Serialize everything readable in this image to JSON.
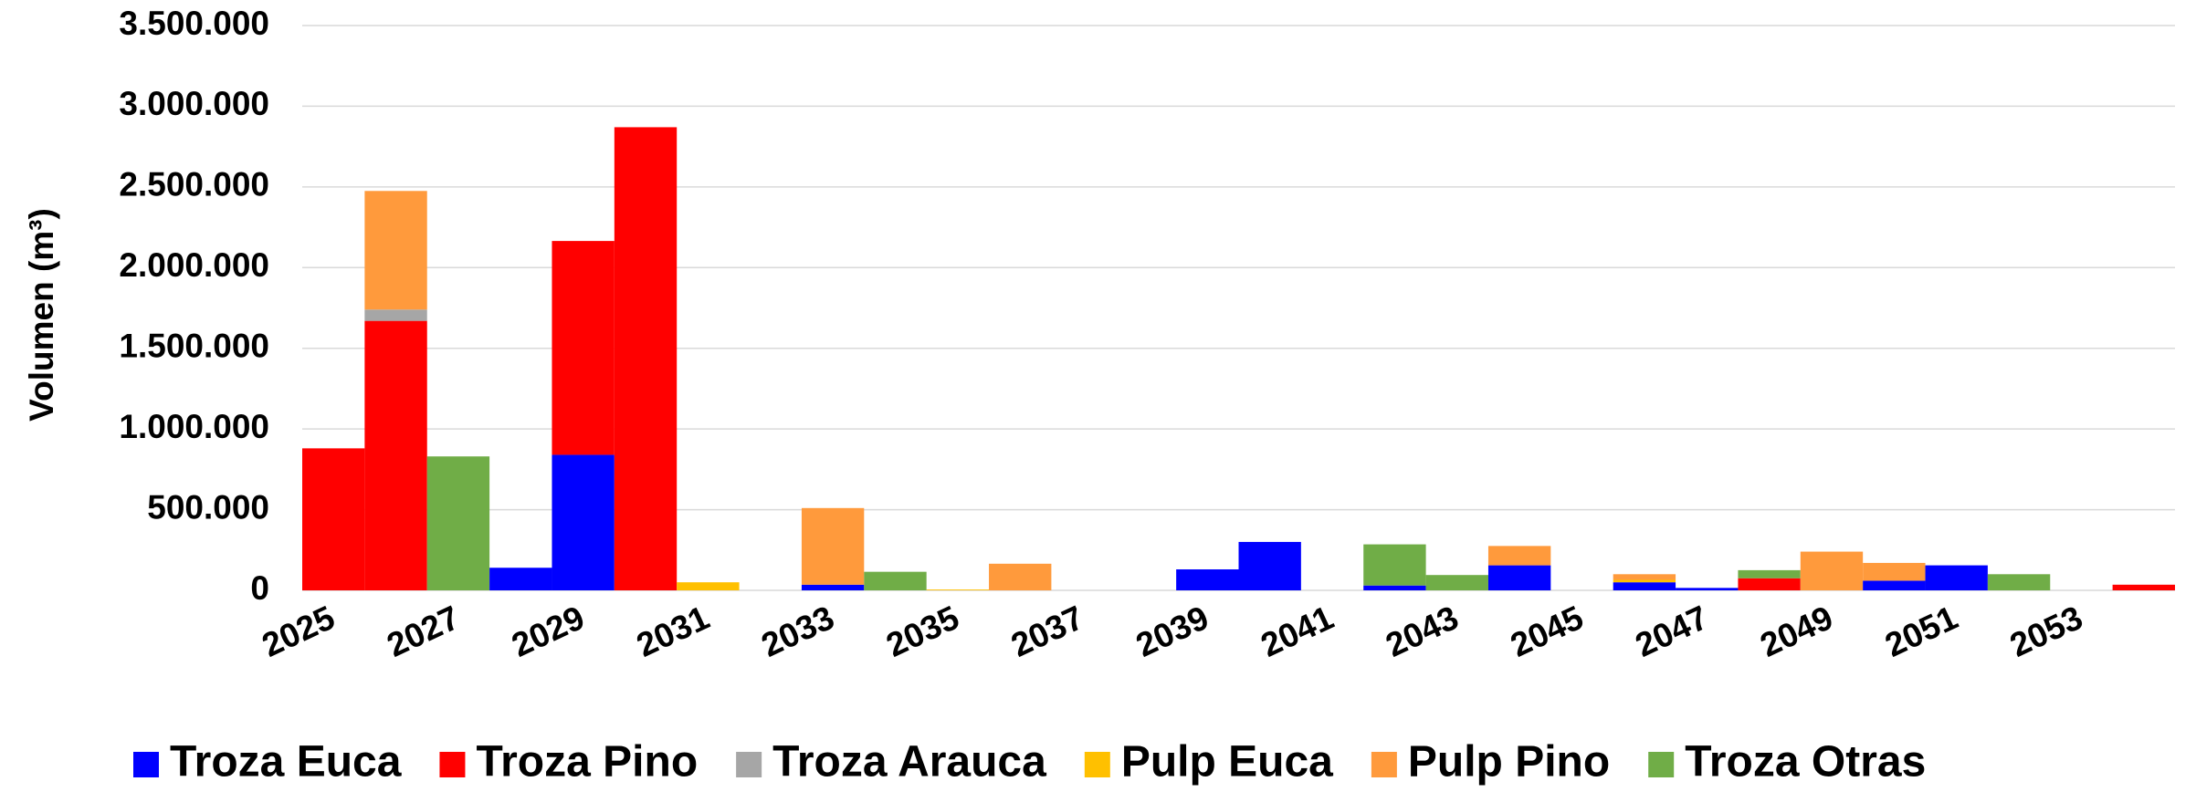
{
  "chart_data": {
    "type": "stacked_bar",
    "y_label": "Volumen (m³)",
    "categories": [
      "2025",
      null,
      "2027",
      null,
      "2029",
      null,
      "2031",
      null,
      "2033",
      null,
      "2035",
      null,
      "2037",
      null,
      "2039",
      null,
      "2041",
      null,
      "2043",
      null,
      "2045",
      null,
      "2047",
      null,
      "2049",
      null,
      "2051",
      null,
      "2053",
      null
    ],
    "series": [
      {
        "name": "Troza Euca",
        "color": "#0000ff",
        "values": [
          0,
          0,
          0,
          140000,
          840000,
          0,
          0,
          0,
          35000,
          0,
          0,
          0,
          0,
          0,
          130000,
          300000,
          0,
          30000,
          0,
          155000,
          0,
          50000,
          15000,
          0,
          0,
          60000,
          155000,
          0,
          0,
          0
        ]
      },
      {
        "name": "Troza Pino",
        "color": "#ff0000",
        "values": [
          880000,
          1670000,
          0,
          0,
          1325000,
          2870000,
          0,
          0,
          0,
          0,
          0,
          0,
          0,
          0,
          0,
          0,
          0,
          0,
          0,
          0,
          0,
          0,
          0,
          75000,
          0,
          0,
          0,
          0,
          0,
          35000
        ]
      },
      {
        "name": "Troza Arauca",
        "color": "#a6a6a6",
        "values": [
          0,
          70000,
          0,
          0,
          0,
          0,
          0,
          0,
          0,
          0,
          0,
          0,
          0,
          0,
          0,
          0,
          0,
          0,
          0,
          0,
          0,
          0,
          0,
          0,
          0,
          0,
          0,
          0,
          0,
          0
        ]
      },
      {
        "name": "Pulp Euca",
        "color": "#ffc000",
        "values": [
          0,
          0,
          0,
          0,
          0,
          0,
          50000,
          0,
          0,
          0,
          5000,
          0,
          0,
          0,
          0,
          0,
          0,
          0,
          0,
          0,
          0,
          15000,
          0,
          0,
          0,
          0,
          0,
          0,
          0,
          0
        ]
      },
      {
        "name": "Pulp Pino",
        "color": "#ff9a3c",
        "values": [
          0,
          735000,
          0,
          0,
          0,
          0,
          0,
          0,
          475000,
          0,
          0,
          165000,
          0,
          0,
          0,
          0,
          0,
          0,
          0,
          120000,
          0,
          35000,
          0,
          0,
          240000,
          110000,
          0,
          0,
          0,
          0
        ]
      },
      {
        "name": "Troza Otras",
        "color": "#70ad47",
        "values": [
          0,
          0,
          830000,
          0,
          0,
          0,
          0,
          0,
          0,
          115000,
          0,
          0,
          0,
          0,
          0,
          0,
          0,
          255000,
          95000,
          0,
          0,
          0,
          0,
          50000,
          0,
          0,
          0,
          100000,
          0,
          0
        ]
      }
    ],
    "ylim": [
      0,
      3500000
    ],
    "yticks": [
      0,
      {
        "value": 500000,
        "label": "500.000"
      },
      {
        "value": 1000000,
        "label": "1.000.000"
      },
      {
        "value": 1500000,
        "label": "1.500.000"
      },
      {
        "value": 2000000,
        "label": "2.000.000"
      },
      {
        "value": 2500000,
        "label": "2.500.000"
      },
      {
        "value": 3000000,
        "label": "3.000.000"
      },
      {
        "value": 3500000,
        "label": "3.500.000"
      }
    ],
    "grid": true,
    "legend": "bottom"
  }
}
